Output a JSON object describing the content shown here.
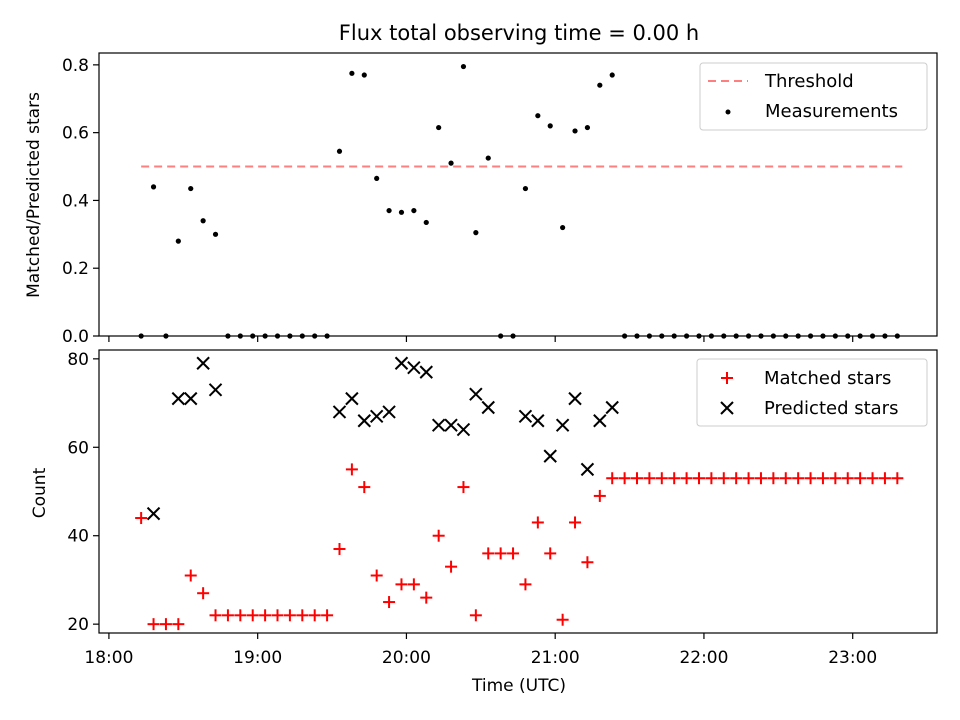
{
  "figure": {
    "title": "Flux total observing time = 0.00 h",
    "xlabel": "Time (UTC)"
  },
  "colors": {
    "threshold": "#ff7f7f",
    "measurements": "#000000",
    "matched": "#ff0000",
    "predicted": "#000000"
  },
  "chart_data": [
    {
      "type": "scatter",
      "ylabel": "Matched/Predicted stars",
      "xlim": [
        "17:56",
        "23:34"
      ],
      "ylim": [
        0,
        0.835
      ],
      "yticks": [
        0,
        0.2,
        0.4,
        0.6,
        0.8
      ],
      "ytick_labels": [
        "0.0",
        "0.2",
        "0.4",
        "0.6",
        "0.8"
      ],
      "legend_position": "top-right",
      "grid": false,
      "threshold": {
        "name": "Threshold",
        "value": 0.5,
        "x_range": [
          "18:13",
          "23:20"
        ]
      },
      "series": [
        {
          "name": "Measurements",
          "points": [
            [
              "18:13",
              0.0
            ],
            [
              "18:18",
              0.44
            ],
            [
              "18:23",
              0.0
            ],
            [
              "18:28",
              0.28
            ],
            [
              "18:33",
              0.435
            ],
            [
              "18:38",
              0.34
            ],
            [
              "18:43",
              0.3
            ],
            [
              "18:48",
              0.0
            ],
            [
              "18:53",
              0.0
            ],
            [
              "18:58",
              0.0
            ],
            [
              "19:03",
              0.0
            ],
            [
              "19:08",
              0.0
            ],
            [
              "19:13",
              0.0
            ],
            [
              "19:18",
              0.0
            ],
            [
              "19:23",
              0.0
            ],
            [
              "19:28",
              0.0
            ],
            [
              "19:33",
              0.545
            ],
            [
              "19:38",
              0.775
            ],
            [
              "19:43",
              0.77
            ],
            [
              "19:48",
              0.465
            ],
            [
              "19:53",
              0.37
            ],
            [
              "19:58",
              0.365
            ],
            [
              "20:03",
              0.37
            ],
            [
              "20:08",
              0.335
            ],
            [
              "20:13",
              0.615
            ],
            [
              "20:18",
              0.51
            ],
            [
              "20:23",
              0.795
            ],
            [
              "20:28",
              0.305
            ],
            [
              "20:33",
              0.525
            ],
            [
              "20:38",
              0.0
            ],
            [
              "20:43",
              0.0
            ],
            [
              "20:48",
              0.435
            ],
            [
              "20:53",
              0.65
            ],
            [
              "20:58",
              0.62
            ],
            [
              "21:03",
              0.32
            ],
            [
              "21:08",
              0.605
            ],
            [
              "21:13",
              0.615
            ],
            [
              "21:18",
              0.74
            ],
            [
              "21:23",
              0.77
            ],
            [
              "21:28",
              0.0
            ],
            [
              "21:33",
              0.0
            ],
            [
              "21:38",
              0.0
            ],
            [
              "21:43",
              0.0
            ],
            [
              "21:48",
              0.0
            ],
            [
              "21:53",
              0.0
            ],
            [
              "21:58",
              0.0
            ],
            [
              "22:03",
              0.0
            ],
            [
              "22:08",
              0.0
            ],
            [
              "22:13",
              0.0
            ],
            [
              "22:18",
              0.0
            ],
            [
              "22:23",
              0.0
            ],
            [
              "22:28",
              0.0
            ],
            [
              "22:33",
              0.0
            ],
            [
              "22:38",
              0.0
            ],
            [
              "22:43",
              0.0
            ],
            [
              "22:48",
              0.0
            ],
            [
              "22:53",
              0.0
            ],
            [
              "22:58",
              0.0
            ],
            [
              "23:03",
              0.0
            ],
            [
              "23:08",
              0.0
            ],
            [
              "23:13",
              0.0
            ],
            [
              "23:18",
              0.0
            ]
          ]
        }
      ]
    },
    {
      "type": "scatter",
      "ylabel": "Count",
      "xlim": [
        "17:56",
        "23:34"
      ],
      "ylim": [
        18,
        82
      ],
      "yticks": [
        20,
        40,
        60,
        80
      ],
      "ytick_labels": [
        "20",
        "40",
        "60",
        "80"
      ],
      "xticks": [
        "18:00",
        "19:00",
        "20:00",
        "21:00",
        "22:00",
        "23:00"
      ],
      "xtick_labels": [
        "18:00",
        "19:00",
        "20:00",
        "21:00",
        "22:00",
        "23:00"
      ],
      "legend_position": "top-right",
      "grid": false,
      "series": [
        {
          "name": "Matched stars",
          "marker": "plus",
          "points": [
            [
              "18:13",
              44
            ],
            [
              "18:18",
              20
            ],
            [
              "18:23",
              20
            ],
            [
              "18:28",
              20
            ],
            [
              "18:33",
              31
            ],
            [
              "18:38",
              27
            ],
            [
              "18:43",
              22
            ],
            [
              "18:48",
              22
            ],
            [
              "18:53",
              22
            ],
            [
              "18:58",
              22
            ],
            [
              "19:03",
              22
            ],
            [
              "19:08",
              22
            ],
            [
              "19:13",
              22
            ],
            [
              "19:18",
              22
            ],
            [
              "19:23",
              22
            ],
            [
              "19:28",
              22
            ],
            [
              "19:33",
              37
            ],
            [
              "19:38",
              55
            ],
            [
              "19:43",
              51
            ],
            [
              "19:48",
              31
            ],
            [
              "19:53",
              25
            ],
            [
              "19:58",
              29
            ],
            [
              "20:03",
              29
            ],
            [
              "20:08",
              26
            ],
            [
              "20:13",
              40
            ],
            [
              "20:18",
              33
            ],
            [
              "20:23",
              51
            ],
            [
              "20:28",
              22
            ],
            [
              "20:33",
              36
            ],
            [
              "20:38",
              36
            ],
            [
              "20:43",
              36
            ],
            [
              "20:48",
              29
            ],
            [
              "20:53",
              43
            ],
            [
              "20:58",
              36
            ],
            [
              "21:03",
              21
            ],
            [
              "21:08",
              43
            ],
            [
              "21:13",
              34
            ],
            [
              "21:18",
              49
            ],
            [
              "21:23",
              53
            ],
            [
              "21:28",
              53
            ],
            [
              "21:33",
              53
            ],
            [
              "21:38",
              53
            ],
            [
              "21:43",
              53
            ],
            [
              "21:48",
              53
            ],
            [
              "21:53",
              53
            ],
            [
              "21:58",
              53
            ],
            [
              "22:03",
              53
            ],
            [
              "22:08",
              53
            ],
            [
              "22:13",
              53
            ],
            [
              "22:18",
              53
            ],
            [
              "22:23",
              53
            ],
            [
              "22:28",
              53
            ],
            [
              "22:33",
              53
            ],
            [
              "22:38",
              53
            ],
            [
              "22:43",
              53
            ],
            [
              "22:48",
              53
            ],
            [
              "22:53",
              53
            ],
            [
              "22:58",
              53
            ],
            [
              "23:03",
              53
            ],
            [
              "23:08",
              53
            ],
            [
              "23:13",
              53
            ],
            [
              "23:18",
              53
            ]
          ]
        },
        {
          "name": "Predicted stars",
          "marker": "x",
          "points": [
            [
              "18:18",
              45
            ],
            [
              "18:28",
              71
            ],
            [
              "18:33",
              71
            ],
            [
              "18:38",
              79
            ],
            [
              "18:43",
              73
            ],
            [
              "19:33",
              68
            ],
            [
              "19:38",
              71
            ],
            [
              "19:43",
              66
            ],
            [
              "19:48",
              67
            ],
            [
              "19:53",
              68
            ],
            [
              "19:58",
              79
            ],
            [
              "20:03",
              78
            ],
            [
              "20:08",
              77
            ],
            [
              "20:13",
              65
            ],
            [
              "20:18",
              65
            ],
            [
              "20:23",
              64
            ],
            [
              "20:28",
              72
            ],
            [
              "20:33",
              69
            ],
            [
              "20:48",
              67
            ],
            [
              "20:53",
              66
            ],
            [
              "20:58",
              58
            ],
            [
              "21:03",
              65
            ],
            [
              "21:08",
              71
            ],
            [
              "21:13",
              55
            ],
            [
              "21:18",
              66
            ],
            [
              "21:23",
              69
            ]
          ]
        }
      ]
    }
  ]
}
